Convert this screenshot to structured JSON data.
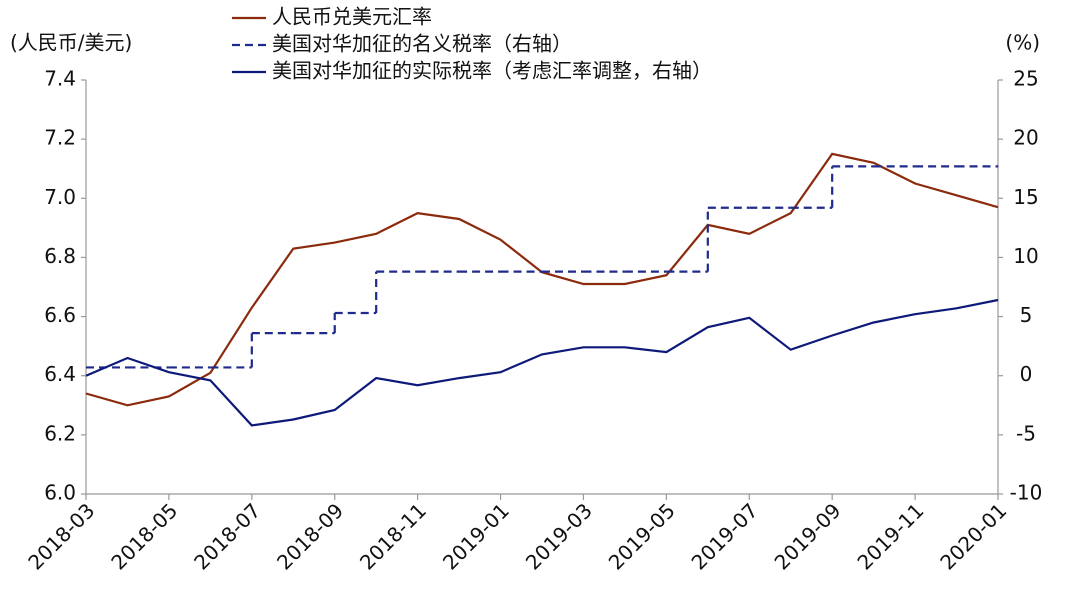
{
  "chart_data": {
    "type": "line",
    "y_label": "(人民币/美元)",
    "y2_label": "(%)",
    "x": [
      "2018-03",
      "2018-04",
      "2018-05",
      "2018-06",
      "2018-07",
      "2018-08",
      "2018-09",
      "2018-10",
      "2018-11",
      "2018-12",
      "2019-01",
      "2019-02",
      "2019-03",
      "2019-04",
      "2019-05",
      "2019-06",
      "2019-07",
      "2019-08",
      "2019-09",
      "2019-10",
      "2019-11",
      "2019-12",
      "2020-01"
    ],
    "xticks": [
      "2018-03",
      "2018-05",
      "2018-07",
      "2018-09",
      "2018-11",
      "2019-01",
      "2019-03",
      "2019-05",
      "2019-07",
      "2019-09",
      "2019-11",
      "2020-01"
    ],
    "ylim": [
      6.0,
      7.4
    ],
    "yticks": [
      {
        "value": 6.0,
        "label": "6.0"
      },
      6.2,
      6.4,
      6.6,
      6.8,
      {
        "value": 7.0,
        "label": "7.0"
      },
      7.2,
      7.4
    ],
    "y2lim": [
      -10,
      25
    ],
    "y2ticks": [
      -10,
      -5,
      0,
      5,
      10,
      15,
      20,
      25
    ],
    "series": [
      {
        "name": "人民币兑美元汇率",
        "color": "#8b2a0c",
        "style": "solid",
        "values": [
          6.34,
          6.3,
          6.33,
          6.41,
          6.63,
          6.83,
          6.85,
          6.88,
          6.95,
          6.93,
          6.86,
          6.75,
          6.71,
          6.71,
          6.74,
          6.91,
          6.88,
          6.95,
          7.15,
          7.12,
          7.05,
          7.01,
          6.97
        ]
      },
      {
        "name": "美国对华加征的名义税率（右轴）",
        "color": "#1f2a8c",
        "style": "dashed-step",
        "axis": "y2",
        "values": [
          0.7,
          0.7,
          0.7,
          0.7,
          3.6,
          3.6,
          5.3,
          8.8,
          8.8,
          8.8,
          8.8,
          8.8,
          8.8,
          8.8,
          8.8,
          14.2,
          14.2,
          14.2,
          17.7,
          17.7,
          17.7,
          17.7,
          17.7
        ]
      },
      {
        "name": "美国对华加征的实际税率（考虑汇率调整，右轴）",
        "color": "#0d1a7a",
        "style": "solid",
        "axis": "y2",
        "values": [
          0.0,
          1.5,
          0.3,
          -0.4,
          -4.2,
          -3.7,
          -2.9,
          -0.2,
          -0.8,
          -0.2,
          0.3,
          1.8,
          2.4,
          2.4,
          2.0,
          4.1,
          4.9,
          2.2,
          3.4,
          4.5,
          5.2,
          5.7,
          6.4
        ]
      }
    ]
  }
}
